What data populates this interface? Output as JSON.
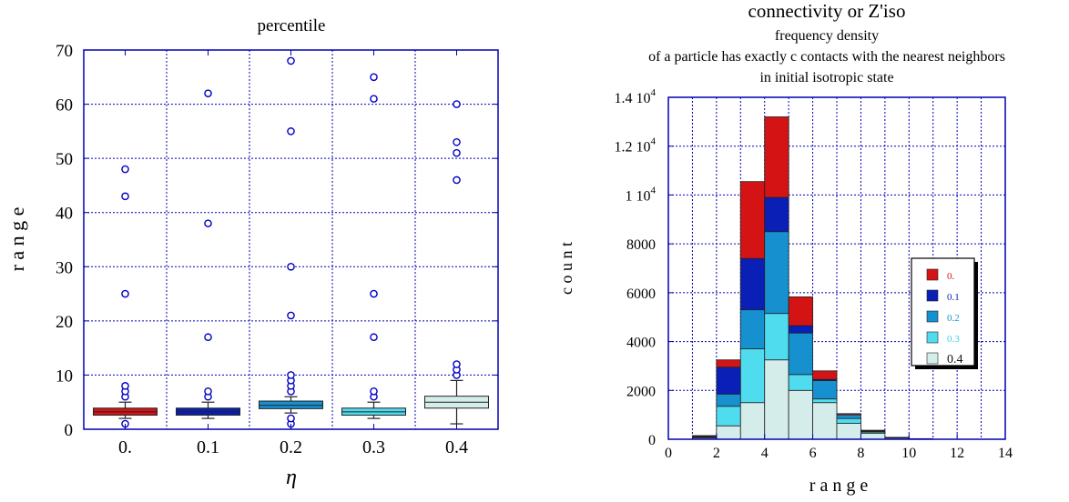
{
  "chart_data": [
    {
      "type": "box",
      "title": "percentile",
      "xlabel": "η",
      "ylabel": "r a n g e",
      "ylim": [
        0,
        70
      ],
      "yticks": [
        0,
        10,
        20,
        30,
        40,
        50,
        60,
        70
      ],
      "categories": [
        "0.",
        "0.1",
        "0.2",
        "0.3",
        "0.4"
      ],
      "grid": true,
      "boxes": [
        {
          "category": "0.",
          "color": "#d41414",
          "min": 2,
          "q1": 2.6,
          "median": 3.2,
          "q3": 3.9,
          "max": 5,
          "outliers": [
            1,
            6,
            7,
            8,
            25,
            43,
            48
          ]
        },
        {
          "category": "0.1",
          "color": "#0a1fb5",
          "min": 2,
          "q1": 2.6,
          "median": 3.2,
          "q3": 3.9,
          "max": 5,
          "outliers": [
            6,
            7,
            17,
            38,
            62
          ]
        },
        {
          "category": "0.2",
          "color": "#1690cf",
          "min": 3,
          "q1": 3.8,
          "median": 4.4,
          "q3": 5.2,
          "max": 6,
          "outliers": [
            1,
            2,
            7,
            8,
            9,
            10,
            21,
            30,
            55,
            68
          ]
        },
        {
          "category": "0.3",
          "color": "#50dcef",
          "min": 2,
          "q1": 2.6,
          "median": 3.2,
          "q3": 3.9,
          "max": 5,
          "outliers": [
            6,
            7,
            17,
            25,
            61,
            65
          ]
        },
        {
          "category": "0.4",
          "color": "#d4ecea",
          "min": 1,
          "q1": 3.9,
          "median": 5.0,
          "q3": 6.1,
          "max": 9,
          "outliers": [
            10,
            11,
            12,
            46,
            51,
            53,
            60
          ]
        }
      ]
    },
    {
      "type": "bar",
      "stacked": true,
      "title_lines": [
        "connectivity or Z'iso",
        "frequency density",
        "of  a particle has  exactly c contacts with the nearest neighbors",
        "in initial isotropic state"
      ],
      "xlabel": "r a n g e",
      "ylabel": "c o u n t",
      "xlim": [
        0,
        14
      ],
      "ylim": [
        0,
        14000
      ],
      "xticks": [
        0,
        2,
        4,
        6,
        8,
        10,
        12,
        14
      ],
      "yticks": [
        {
          "value": 0,
          "label": "0"
        },
        {
          "value": 2000,
          "label": "2000"
        },
        {
          "value": 4000,
          "label": "4000"
        },
        {
          "value": 6000,
          "label": "6000"
        },
        {
          "value": 8000,
          "label": "8000"
        },
        {
          "value": 10000,
          "label": "1 10",
          "exp": "4"
        },
        {
          "value": 12000,
          "label": "1.2 10",
          "exp": "4"
        },
        {
          "value": 14000,
          "label": "1.4 10",
          "exp": "4"
        }
      ],
      "grid": true,
      "bins": [
        [
          1,
          2
        ],
        [
          2,
          3
        ],
        [
          3,
          4
        ],
        [
          4,
          5
        ],
        [
          5,
          6
        ],
        [
          6,
          7
        ],
        [
          7,
          8
        ],
        [
          8,
          9
        ],
        [
          9,
          10
        ],
        [
          10,
          11
        ]
      ],
      "series": [
        {
          "name": "0.4",
          "color": "#d4ecea",
          "values": [
            60,
            550,
            1500,
            3250,
            2000,
            1500,
            650,
            250,
            50,
            10
          ]
        },
        {
          "name": "0.3",
          "color": "#50dcef",
          "values": [
            30,
            800,
            2200,
            1900,
            650,
            150,
            200,
            50,
            10,
            5
          ]
        },
        {
          "name": "0.2",
          "color": "#1690cf",
          "values": [
            20,
            500,
            1600,
            3350,
            1700,
            750,
            150,
            20,
            10,
            5
          ]
        },
        {
          "name": "0.1",
          "color": "#0a1fb5",
          "values": [
            20,
            1100,
            2100,
            1400,
            300,
            50,
            0,
            30,
            5,
            0
          ]
        },
        {
          "name": "0.",
          "color": "#d41414",
          "values": [
            20,
            300,
            3150,
            3300,
            1180,
            350,
            50,
            20,
            5,
            5
          ]
        }
      ],
      "legend": {
        "position": "right",
        "entries": [
          "0.",
          "0.1",
          "0.2",
          "0.3",
          "0.4"
        ]
      }
    }
  ]
}
